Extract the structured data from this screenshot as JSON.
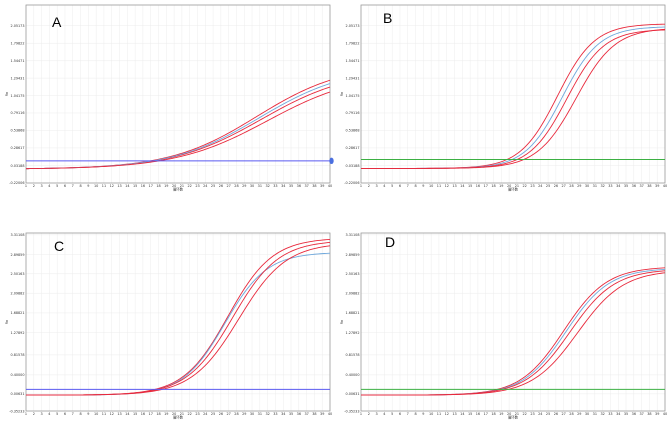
{
  "chart_data": [
    {
      "type": "line",
      "panel": "A",
      "xlabel": "循环数",
      "ylabel": "Rn",
      "xlim": [
        1,
        40
      ],
      "ylim": [
        -0.22,
        2.35
      ],
      "x_ticks": [
        1,
        2,
        3,
        4,
        5,
        6,
        7,
        8,
        9,
        10,
        11,
        12,
        13,
        14,
        15,
        16,
        17,
        18,
        19,
        20,
        21,
        22,
        23,
        24,
        25,
        26,
        27,
        28,
        29,
        30,
        31,
        32,
        33,
        34,
        35,
        36,
        37,
        38,
        39,
        40
      ],
      "y_ticks": [
        -0.22006,
        0.03188,
        0.28617,
        0.53868,
        0.79116,
        1.04175,
        1.29431,
        1.54471,
        1.79822,
        2.05173
      ],
      "threshold": 0.1,
      "threshold_color": "#5a5af0",
      "grid": true,
      "series": [
        {
          "color": "#e8293c",
          "base": -0.02,
          "top": 1.5,
          "midpoint": 30.6,
          "slope": 0.18
        },
        {
          "color": "#e8293c",
          "base": -0.02,
          "top": 1.42,
          "midpoint": 31.2,
          "slope": 0.175
        },
        {
          "color": "#6fa8dc",
          "base": -0.02,
          "top": 1.46,
          "midpoint": 30.9,
          "slope": 0.178
        },
        {
          "color": "#e8293c",
          "base": -0.02,
          "top": 1.38,
          "midpoint": 32.0,
          "slope": 0.17
        }
      ]
    },
    {
      "type": "line",
      "panel": "B",
      "xlabel": "循环数",
      "ylabel": "Rn",
      "xlim": [
        1,
        40
      ],
      "ylim": [
        -0.22,
        2.35
      ],
      "x_ticks": [
        1,
        2,
        3,
        4,
        5,
        6,
        7,
        8,
        9,
        10,
        11,
        12,
        13,
        14,
        15,
        16,
        17,
        18,
        19,
        20,
        21,
        22,
        23,
        24,
        25,
        26,
        27,
        28,
        29,
        30,
        31,
        32,
        33,
        34,
        35,
        36,
        37,
        38,
        39,
        40
      ],
      "y_ticks": [
        -0.22006,
        0.03188,
        0.28617,
        0.53868,
        0.79116,
        1.04175,
        1.29431,
        1.54471,
        1.79822,
        2.05173
      ],
      "threshold": 0.12,
      "threshold_color": "#3cb043",
      "grid": true,
      "series": [
        {
          "color": "#e8293c",
          "base": -0.01,
          "top": 2.08,
          "midpoint": 26.2,
          "slope": 0.42
        },
        {
          "color": "#6fa8dc",
          "base": -0.01,
          "top": 2.04,
          "midpoint": 26.8,
          "slope": 0.42
        },
        {
          "color": "#e8293c",
          "base": -0.01,
          "top": 2.0,
          "midpoint": 27.4,
          "slope": 0.42
        },
        {
          "color": "#e8293c",
          "base": -0.01,
          "top": 2.02,
          "midpoint": 28.6,
          "slope": 0.4
        }
      ]
    },
    {
      "type": "line",
      "panel": "C",
      "xlabel": "循环数",
      "ylabel": "Rn",
      "xlim": [
        1,
        40
      ],
      "ylim": [
        -0.35,
        3.35
      ],
      "x_ticks": [
        1,
        2,
        3,
        4,
        5,
        6,
        7,
        8,
        9,
        10,
        11,
        12,
        13,
        14,
        15,
        16,
        17,
        18,
        19,
        20,
        21,
        22,
        23,
        24,
        25,
        26,
        27,
        28,
        29,
        30,
        31,
        32,
        33,
        34,
        35,
        36,
        37,
        38,
        39,
        40
      ],
      "y_ticks": [
        -0.35233,
        0.00631,
        0.4,
        0.81578,
        1.27892,
        1.68821,
        2.09882,
        2.50163,
        2.89859,
        3.31108
      ],
      "threshold": 0.1,
      "threshold_color": "#5a5af0",
      "grid": true,
      "series": [
        {
          "color": "#e8293c",
          "base": -0.02,
          "top": 3.25,
          "midpoint": 26.9,
          "slope": 0.35
        },
        {
          "color": "#6fa8dc",
          "base": -0.02,
          "top": 2.95,
          "midpoint": 26.5,
          "slope": 0.37
        },
        {
          "color": "#e8293c",
          "base": -0.02,
          "top": 3.2,
          "midpoint": 27.5,
          "slope": 0.34
        },
        {
          "color": "#e8293c",
          "base": -0.02,
          "top": 3.15,
          "midpoint": 28.3,
          "slope": 0.33
        }
      ]
    },
    {
      "type": "line",
      "panel": "D",
      "xlabel": "循环数",
      "ylabel": "Rn",
      "xlim": [
        1,
        40
      ],
      "ylim": [
        -0.35,
        3.35
      ],
      "x_ticks": [
        1,
        2,
        3,
        4,
        5,
        6,
        7,
        8,
        9,
        10,
        11,
        12,
        13,
        14,
        15,
        16,
        17,
        18,
        19,
        20,
        21,
        22,
        23,
        24,
        25,
        26,
        27,
        28,
        29,
        30,
        31,
        32,
        33,
        34,
        35,
        36,
        37,
        38,
        39,
        40
      ],
      "y_ticks": [
        -0.35233,
        0.00631,
        0.4,
        0.81578,
        1.27892,
        1.68821,
        2.09882,
        2.50163,
        2.89859,
        3.31108
      ],
      "threshold": 0.1,
      "threshold_color": "#3cb043",
      "grid": true,
      "series": [
        {
          "color": "#e8293c",
          "base": -0.02,
          "top": 2.65,
          "midpoint": 27.0,
          "slope": 0.36
        },
        {
          "color": "#6fa8dc",
          "base": -0.02,
          "top": 2.62,
          "midpoint": 27.3,
          "slope": 0.36
        },
        {
          "color": "#e8293c",
          "base": -0.02,
          "top": 2.6,
          "midpoint": 27.8,
          "slope": 0.35
        },
        {
          "color": "#e8293c",
          "base": -0.02,
          "top": 2.58,
          "midpoint": 28.8,
          "slope": 0.34
        }
      ]
    }
  ]
}
